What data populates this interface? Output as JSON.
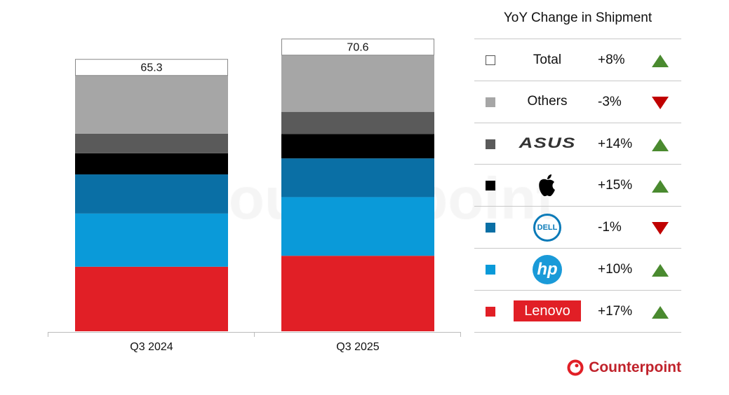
{
  "chart_data": {
    "type": "bar",
    "stacked": true,
    "categories": [
      "Q3 2024",
      "Q3 2025"
    ],
    "totals": [
      "65.3",
      "70.6"
    ],
    "ylim": [
      0,
      72
    ],
    "grid": false,
    "legend_position": "right",
    "legend_title": "YoY Change in Shipment",
    "series": [
      {
        "name": "Lenovo",
        "color": "#e11f26",
        "values": [
          16.5,
          19.3
        ],
        "yoy": "+17%",
        "trend": "up"
      },
      {
        "name": "hp",
        "color": "#0a9ad9",
        "values": [
          13.6,
          15.0
        ],
        "yoy": "+10%",
        "trend": "up"
      },
      {
        "name": "DELL",
        "color": "#0a6fa5",
        "values": [
          10.0,
          9.9
        ],
        "yoy": "-1%",
        "trend": "down"
      },
      {
        "name": "Apple",
        "color": "#000000",
        "values": [
          5.4,
          6.2
        ],
        "yoy": "+15%",
        "trend": "up"
      },
      {
        "name": "ASUS",
        "color": "#5a5a5a",
        "values": [
          5.0,
          5.7
        ],
        "yoy": "+14%",
        "trend": "up"
      },
      {
        "name": "Others",
        "color": "#a6a6a6",
        "values": [
          14.9,
          14.5
        ],
        "yoy": "-3%",
        "trend": "down"
      }
    ],
    "total_legend": {
      "name": "Total",
      "yoy": "+8%",
      "trend": "up"
    }
  },
  "colors": {
    "up": "#4a8a2f",
    "down": "#c00000"
  },
  "branding": {
    "watermark": "Counterpoint",
    "logo": "Counterpoint"
  }
}
